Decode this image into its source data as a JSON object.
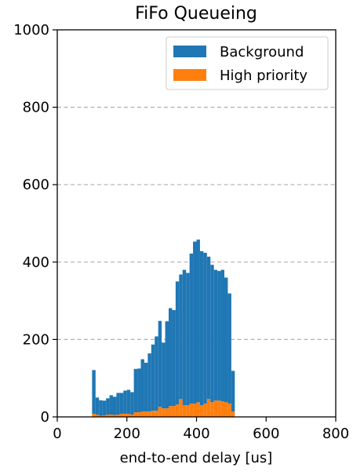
{
  "chart_data": {
    "type": "bar",
    "title": "FiFo Queueing",
    "xlabel": "end-to-end delay [us]",
    "ylabel": "",
    "xlim": [
      0,
      800
    ],
    "ylim": [
      0,
      1000
    ],
    "xticks": [
      0,
      200,
      400,
      600,
      800
    ],
    "yticks": [
      0,
      200,
      400,
      600,
      800,
      1000
    ],
    "grid": "y-dashed",
    "legend_position": "top-right",
    "stacked": true,
    "bin_width": 10,
    "x": [
      100,
      110,
      120,
      130,
      140,
      150,
      160,
      170,
      180,
      190,
      200,
      210,
      220,
      230,
      240,
      250,
      260,
      270,
      280,
      290,
      300,
      310,
      320,
      330,
      340,
      350,
      360,
      370,
      380,
      390,
      400,
      410,
      420,
      430,
      440,
      450,
      460,
      470,
      480,
      490,
      500
    ],
    "series": [
      {
        "name": "Background",
        "color": "#1f77b4",
        "values": [
          113,
          44,
          40,
          38,
          42,
          50,
          47,
          56,
          54,
          60,
          62,
          58,
          112,
          113,
          135,
          126,
          150,
          171,
          192,
          222,
          170,
          225,
          253,
          248,
          318,
          322,
          350,
          342,
          388,
          419,
          420,
          398,
          390,
          368,
          355,
          338,
          335,
          340,
          322,
          285,
          105
        ]
      },
      {
        "name": "High priority",
        "color": "#ff7f0e",
        "values": [
          8,
          6,
          3,
          4,
          6,
          6,
          5,
          6,
          8,
          8,
          8,
          6,
          12,
          12,
          14,
          14,
          14,
          16,
          16,
          26,
          22,
          22,
          28,
          28,
          32,
          46,
          30,
          30,
          34,
          34,
          38,
          30,
          34,
          46,
          38,
          42,
          42,
          40,
          38,
          34,
          14
        ]
      }
    ]
  }
}
